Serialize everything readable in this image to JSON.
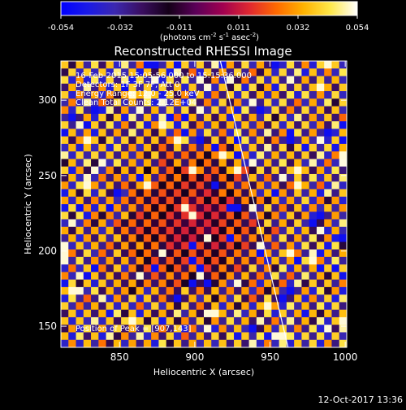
{
  "chart_data": {
    "type": "heatmap",
    "title": "Reconstructed RHESSI Image",
    "xlabel": "Heliocentric X (arcsec)",
    "ylabel": "Heliocentric Y (arcsec)",
    "xlim": [
      811,
      1001
    ],
    "ylim": [
      136,
      326
    ],
    "xticks": [
      850,
      900,
      950,
      1000
    ],
    "yticks": [
      150,
      200,
      250,
      300
    ],
    "colorbar": {
      "min": -0.054,
      "max": 0.054,
      "ticks": [
        "-0.054",
        "-0.032",
        "-0.011",
        "0.011",
        "0.032",
        "0.054"
      ],
      "units_main": "(photons cm",
      "units_exp1": "-2",
      "units_mid": " s",
      "units_exp2": "-1",
      "units_mid2": " asec",
      "units_exp3": "-2",
      "units_end": ")",
      "colors": [
        "#0000ff",
        "#1a1ae6",
        "#3b28b0",
        "#3a0e60",
        "#140018",
        "#5a0058",
        "#a00050",
        "#e02830",
        "#ff6a00",
        "#ffb200",
        "#ffe84a",
        "#ffffff"
      ]
    },
    "limb_line": {
      "x": [
        917,
        962
      ],
      "y": [
        326,
        136
      ]
    },
    "info_lines": [
      "16-Feb-2015 15:05:56.000 to 15:15:36.000",
      "Detectors: 1F 3F 7F, Att 0",
      "Energy Range: 12.0 - 25.0 keV",
      "Clean    Total Counts: 2.12E+04"
    ],
    "peak_label": "Position of Peak = [907,143]",
    "footer_date": "12-Oct-2017 13:36"
  }
}
